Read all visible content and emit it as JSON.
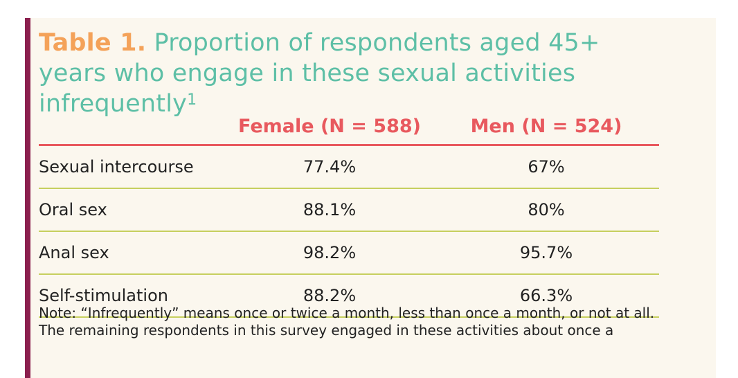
{
  "title": {
    "label": "Table 1.",
    "text": "Proportion of respondents aged 45+ years who engage in these sexual activities infrequently",
    "footnote_marker": "1"
  },
  "table": {
    "columns": [
      "",
      "Female (N = 588)",
      "Men (N = 524)"
    ],
    "rows": [
      {
        "activity": "Sexual intercourse",
        "female": "77.4%",
        "men": "67%"
      },
      {
        "activity": "Oral sex",
        "female": "88.1%",
        "men": "80%"
      },
      {
        "activity": "Anal sex",
        "female": "98.2%",
        "men": "95.7%"
      },
      {
        "activity": "Self-stimulation",
        "female": "88.2%",
        "men": "66.3%"
      }
    ]
  },
  "note": "Note: “Infrequently” means once or twice a month, less than once a month, or not at all. The remaining respondents in this survey engaged in these activities about once a",
  "colors": {
    "accent_bar": "#8b1f4e",
    "title_label": "#f4a259",
    "title_text": "#5dbfa6",
    "header": "#e8595e",
    "row_divider": "#c6cf5e",
    "background": "#fbf7ee"
  }
}
